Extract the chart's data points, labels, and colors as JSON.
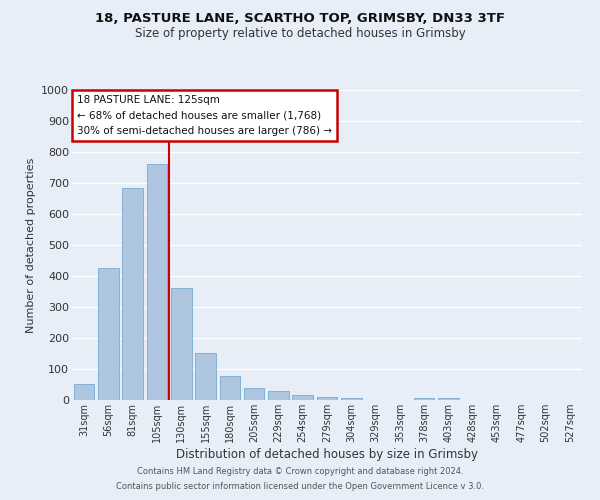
{
  "title1": "18, PASTURE LANE, SCARTHO TOP, GRIMSBY, DN33 3TF",
  "title2": "Size of property relative to detached houses in Grimsby",
  "xlabel": "Distribution of detached houses by size in Grimsby",
  "ylabel": "Number of detached properties",
  "bar_labels": [
    "31sqm",
    "56sqm",
    "81sqm",
    "105sqm",
    "130sqm",
    "155sqm",
    "180sqm",
    "205sqm",
    "229sqm",
    "254sqm",
    "279sqm",
    "304sqm",
    "329sqm",
    "353sqm",
    "378sqm",
    "403sqm",
    "428sqm",
    "453sqm",
    "477sqm",
    "502sqm",
    "527sqm"
  ],
  "bar_values": [
    52,
    425,
    683,
    760,
    362,
    152,
    76,
    40,
    30,
    15,
    10,
    7,
    0,
    0,
    8,
    8,
    0,
    0,
    0,
    0,
    0
  ],
  "bar_color": "#aec6e0",
  "bar_edge_color": "#7aaad0",
  "vline_color": "#cc0000",
  "ylim": [
    0,
    1000
  ],
  "yticks": [
    0,
    100,
    200,
    300,
    400,
    500,
    600,
    700,
    800,
    900,
    1000
  ],
  "bg_color": "#e8eef8",
  "grid_color": "#ffffff",
  "annotation_title": "18 PASTURE LANE: 125sqm",
  "annotation_line1": "← 68% of detached houses are smaller (1,768)",
  "annotation_line2": "30% of semi-detached houses are larger (786) →",
  "annotation_box_color": "#ffffff",
  "annotation_box_edge": "#cc0000",
  "footer1": "Contains HM Land Registry data © Crown copyright and database right 2024.",
  "footer2": "Contains public sector information licensed under the Open Government Licence v 3.0."
}
